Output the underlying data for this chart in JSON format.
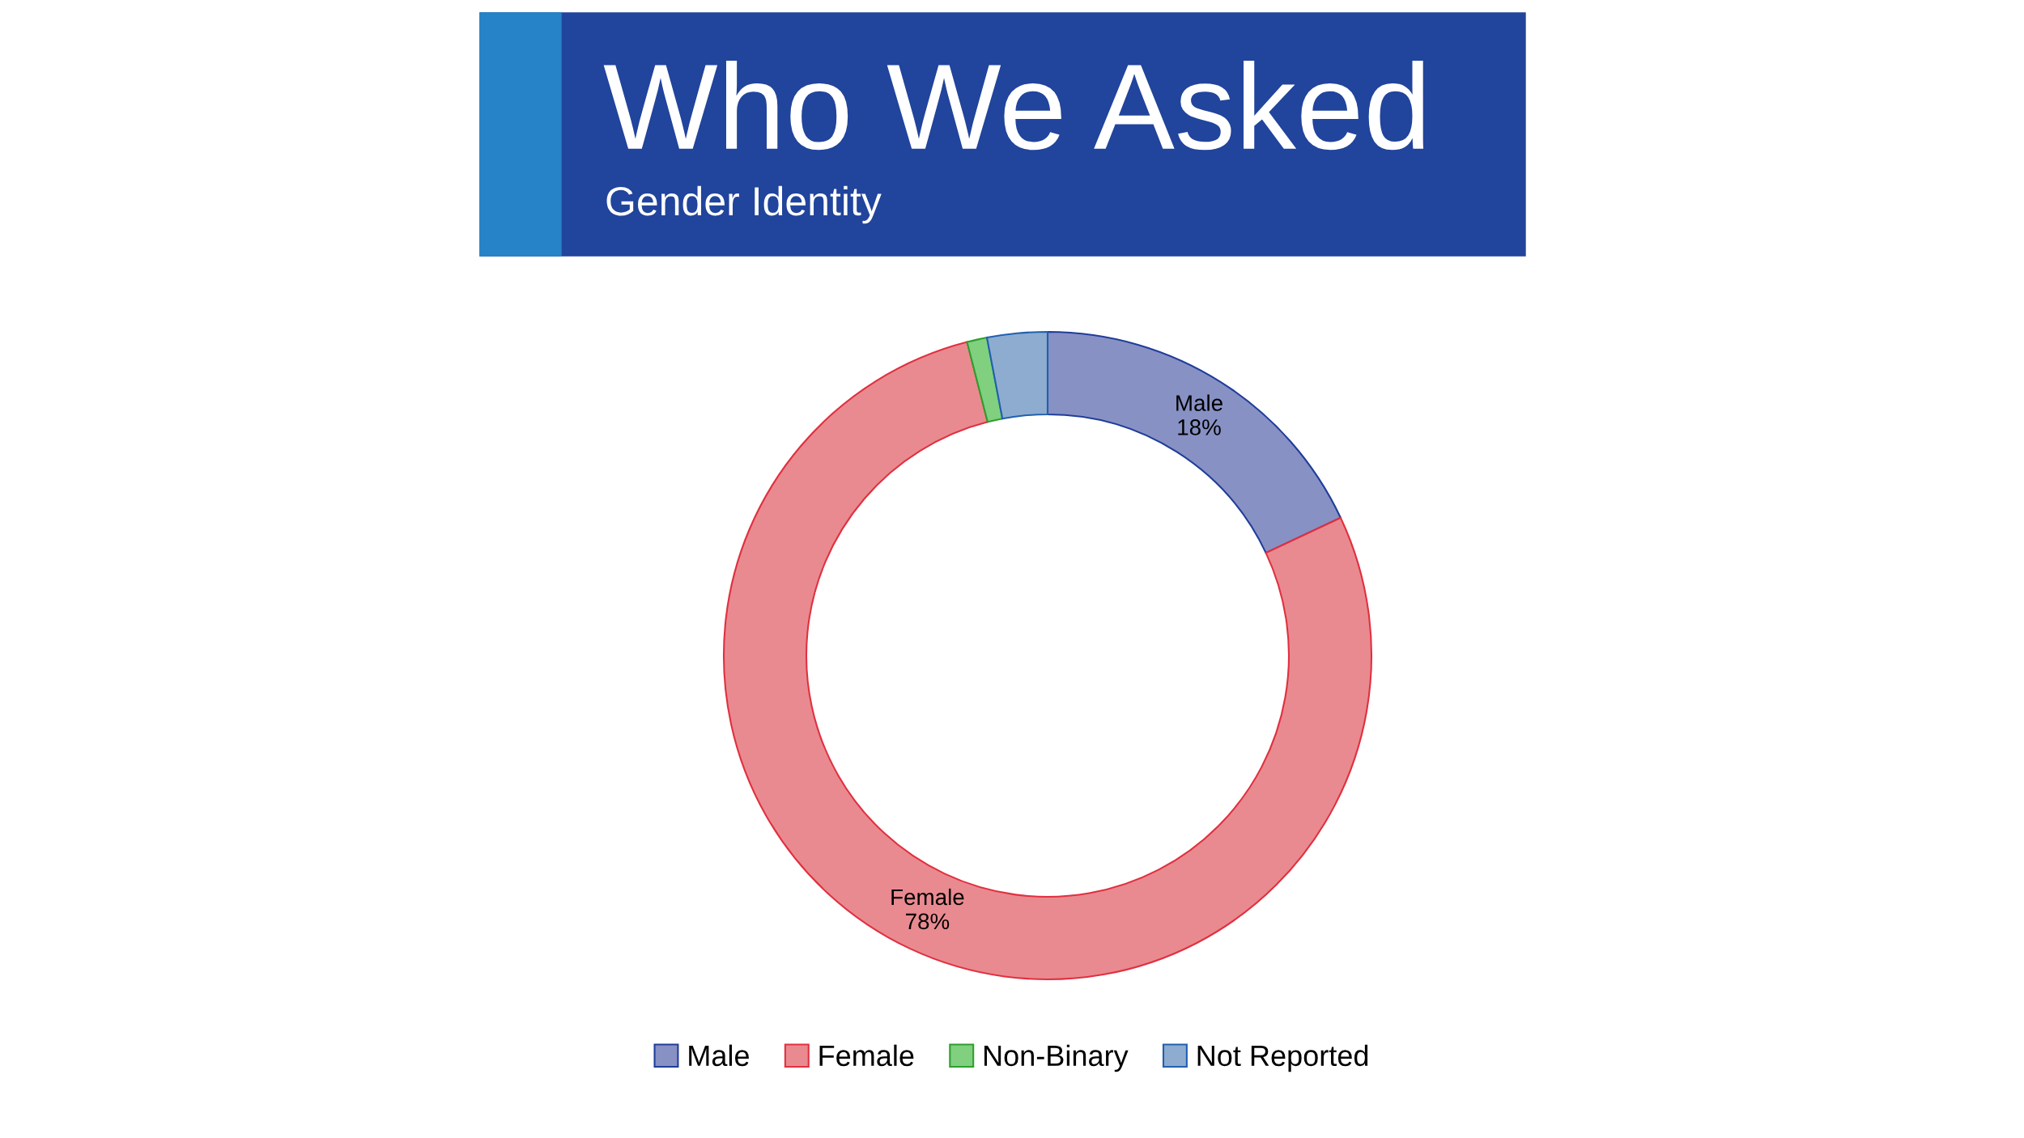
{
  "chart_data": {
    "type": "donut",
    "title": "Who We Asked",
    "subtitle": "Gender Identity",
    "categories": [
      "Male",
      "Female",
      "Non-Binary",
      "Not Reported"
    ],
    "values": [
      18,
      78,
      1,
      3
    ],
    "colors": [
      "#8891c4",
      "#e98a90",
      "#80d080",
      "#8eacd0"
    ],
    "value_labels": [
      "18%",
      "78%",
      null,
      null
    ],
    "legend": "bottom"
  }
}
